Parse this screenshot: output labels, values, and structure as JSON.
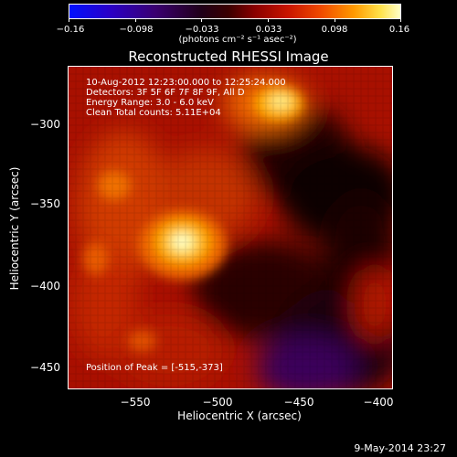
{
  "colorbar": {
    "ticks": [
      "−0.16",
      "−0.098",
      "−0.033",
      "0.033",
      "0.098",
      "0.16"
    ],
    "unit": "(photons cm⁻² s⁻¹ asec⁻²)"
  },
  "title": "Reconstructed RHESSI Image",
  "info": {
    "line1": "10-Aug-2012 12:23:00.000 to 12:25:24.000",
    "line2": "Detectors: 3F 5F 6F 7F 8F 9F, All D",
    "line3": "Energy Range: 3.0 - 6.0 keV",
    "line4": "Clean      Total counts: 5.11E+04"
  },
  "peak_text": "Position of Peak = [-515,-373]",
  "axes": {
    "xlabel": "Heliocentric X (arcsec)",
    "ylabel": "Heliocentric Y (arcsec)",
    "xticks": [
      "−550",
      "−500",
      "−450",
      "−400"
    ],
    "yticks": [
      "−300",
      "−350",
      "−400",
      "−450"
    ]
  },
  "timestamp": "9-May-2014 23:27"
}
